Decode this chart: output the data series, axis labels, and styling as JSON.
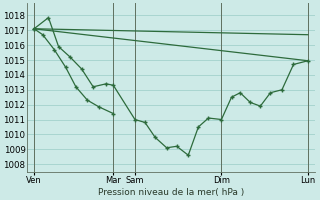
{
  "background_color": "#cdeae7",
  "grid_color": "#a8d5d0",
  "line_color": "#2d6b3c",
  "ylabel_text": "Pression niveau de la mer( hPa )",
  "ylim": [
    1007.5,
    1018.8
  ],
  "yticks": [
    1008,
    1009,
    1010,
    1011,
    1012,
    1013,
    1014,
    1015,
    1016,
    1017,
    1018
  ],
  "xlim": [
    0,
    20
  ],
  "xtick_positions": [
    0.5,
    6.0,
    7.5,
    13.5,
    19.5
  ],
  "xtick_labels": [
    "Ven",
    "Mar",
    "Sam",
    "Dim",
    "Lun"
  ],
  "vlines": [
    0.5,
    6.0,
    7.5,
    13.5,
    19.5
  ],
  "series_main": {
    "x": [
      0.5,
      1.5,
      2.2,
      3.0,
      3.8,
      4.6,
      5.5,
      6.0,
      7.5,
      8.2,
      8.9,
      9.7,
      10.4,
      11.2,
      11.9,
      12.6,
      13.5,
      14.2,
      14.8,
      15.5,
      16.2,
      16.9,
      17.7,
      18.5,
      19.5
    ],
    "y": [
      1017.1,
      1017.85,
      1015.9,
      1015.2,
      1014.4,
      1013.2,
      1013.4,
      1013.3,
      1011.0,
      1010.8,
      1009.8,
      1009.1,
      1009.2,
      1008.6,
      1010.5,
      1011.1,
      1011.0,
      1012.5,
      1012.8,
      1012.15,
      1011.9,
      1012.8,
      1013.0,
      1014.7,
      1014.95
    ]
  },
  "series_short": {
    "x": [
      0.5,
      1.1,
      1.9,
      2.7,
      3.4,
      4.2,
      5.0,
      6.0
    ],
    "y": [
      1017.1,
      1016.7,
      1015.7,
      1014.5,
      1013.2,
      1012.3,
      1011.85,
      1011.4
    ]
  },
  "series_trend1": {
    "x": [
      0.5,
      19.5
    ],
    "y": [
      1017.1,
      1016.7
    ]
  },
  "series_trend2": {
    "x": [
      0.5,
      19.5
    ],
    "y": [
      1017.1,
      1014.95
    ]
  }
}
